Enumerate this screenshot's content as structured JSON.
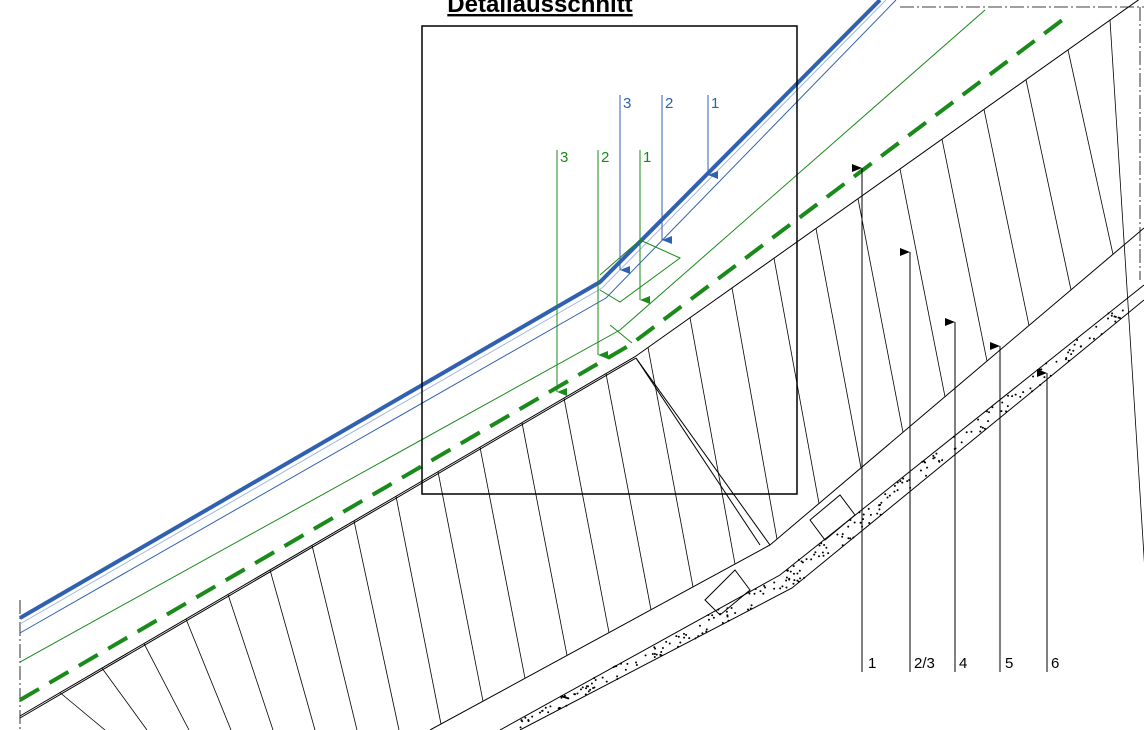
{
  "title": "Detailausschnitt",
  "blue_labels": [
    "3",
    "2",
    "1"
  ],
  "green_labels": [
    "3",
    "2",
    "1"
  ],
  "black_labels": [
    "1",
    "2/3",
    "4",
    "5",
    "6"
  ]
}
